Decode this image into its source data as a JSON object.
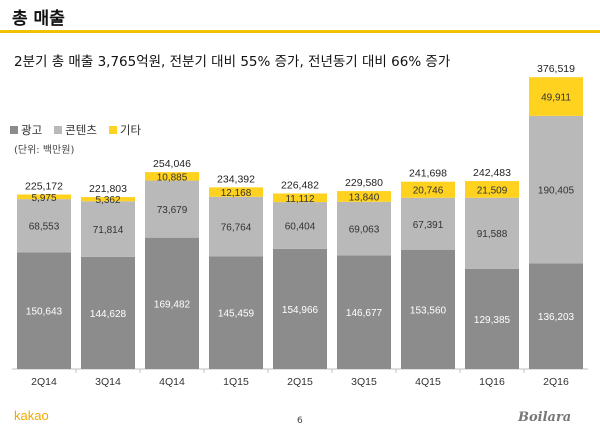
{
  "header": {
    "title": "총 매출",
    "subtitle": "2분기 총 매출 3,765억원, 전분기 대비 55% 증가, 전년동기 대비 66% 증가"
  },
  "colors": {
    "ad": "#8c8c8c",
    "content": "#b9b9b9",
    "other": "#ffd21f",
    "accent": "#f2c200"
  },
  "legend": {
    "items": [
      {
        "label": "광고",
        "color": "#8c8c8c"
      },
      {
        "label": "콘텐츠",
        "color": "#b9b9b9"
      },
      {
        "label": "기타",
        "color": "#ffd21f"
      }
    ],
    "unit_note": "(단위: 백만원)"
  },
  "chart_data": {
    "type": "bar",
    "stacked": true,
    "categories": [
      "2Q14",
      "3Q14",
      "4Q14",
      "1Q15",
      "2Q15",
      "3Q15",
      "4Q15",
      "1Q16",
      "2Q16"
    ],
    "series": [
      {
        "name": "광고",
        "values": [
          150643,
          144628,
          169482,
          145459,
          154966,
          146677,
          153560,
          129385,
          136203
        ]
      },
      {
        "name": "콘텐츠",
        "values": [
          68553,
          71814,
          73679,
          76764,
          60404,
          69063,
          67391,
          91588,
          190405
        ]
      },
      {
        "name": "기타",
        "values": [
          5975,
          5362,
          10885,
          12168,
          11112,
          13840,
          20746,
          21509,
          49911
        ]
      }
    ],
    "series_labels": [
      [
        "150,643",
        "144,628",
        "169,482",
        "145,459",
        "154,966",
        "146,677",
        "153,560",
        "129,385",
        "136,203"
      ],
      [
        "68,553",
        "71,814",
        "73,679",
        "76,764",
        "60,404",
        "69,063",
        "67,391",
        "91,588",
        "190,405"
      ],
      [
        "5,975",
        "5,362",
        "10,885",
        "12,168",
        "11,112",
        "13,840",
        "20,746",
        "21,509",
        "49,911"
      ]
    ],
    "totals": [
      225172,
      221803,
      254046,
      234392,
      226482,
      229580,
      241698,
      242483,
      376519
    ],
    "total_labels": [
      "225,172",
      "221,803",
      "254,046",
      "234,392",
      "226,482",
      "229,580",
      "241,698",
      "242,483",
      "376,519"
    ],
    "ylim": [
      0,
      400000
    ],
    "legend_position": "top-left",
    "grid": false
  },
  "footer": {
    "brand": "kakao",
    "page": "6",
    "watermark": "Boilara"
  }
}
